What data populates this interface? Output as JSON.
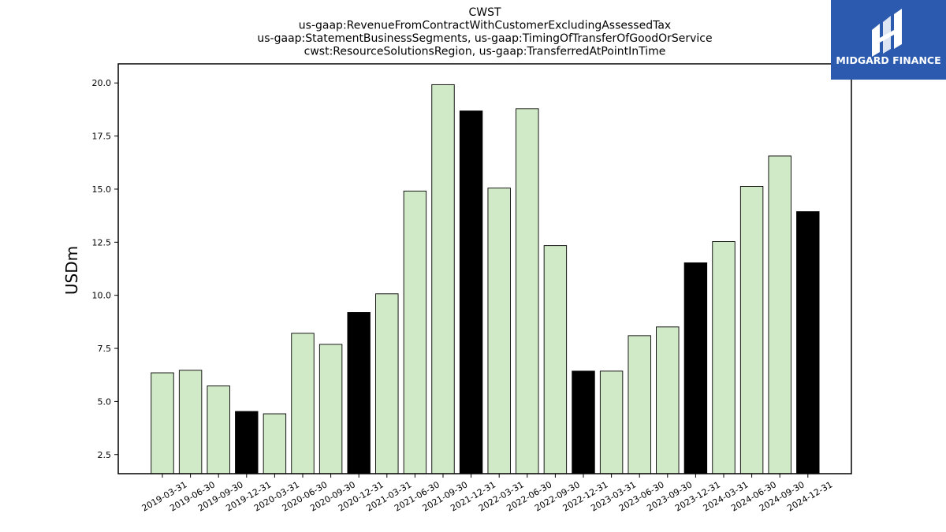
{
  "chart_data": {
    "type": "bar",
    "title": [
      "CWST",
      "us-gaap:RevenueFromContractWithCustomerExcludingAssessedTax",
      "us-gaap:StatementBusinessSegments, us-gaap:TimingOfTransferOfGoodOrService",
      "cwst:ResourceSolutionsRegion, us-gaap:TransferredAtPointInTime"
    ],
    "xlabel": "",
    "ylabel": "USDm",
    "categories": [
      "2019-03-31",
      "2019-06-30",
      "2019-09-30",
      "2019-12-31",
      "2020-03-31",
      "2020-06-30",
      "2020-09-30",
      "2020-12-31",
      "2021-03-31",
      "2021-06-30",
      "2021-09-30",
      "2021-12-31",
      "2022-03-31",
      "2022-06-30",
      "2022-09-30",
      "2022-12-31",
      "2023-03-31",
      "2023-06-30",
      "2023-09-30",
      "2023-12-31",
      "2024-03-31",
      "2024-06-30",
      "2024-09-30",
      "2024-12-31"
    ],
    "values": [
      6.35,
      6.47,
      5.73,
      4.53,
      4.42,
      8.21,
      7.69,
      9.19,
      10.07,
      14.91,
      19.92,
      18.68,
      15.05,
      18.79,
      12.34,
      6.43,
      6.43,
      8.1,
      8.51,
      11.53,
      12.53,
      15.13,
      16.56,
      13.94
    ],
    "ylim": [
      1.6,
      20.9
    ],
    "yticks": [
      "2.5",
      "5.0",
      "7.5",
      "10.0",
      "12.5",
      "15.0",
      "17.5",
      "20.0"
    ],
    "colors": {
      "default": "#d0e9c6",
      "q4": "#000000",
      "edge": "#000000"
    },
    "grid": false
  },
  "logo": {
    "text": "MIDGARD FINANCE",
    "background": "#2b5aae"
  }
}
